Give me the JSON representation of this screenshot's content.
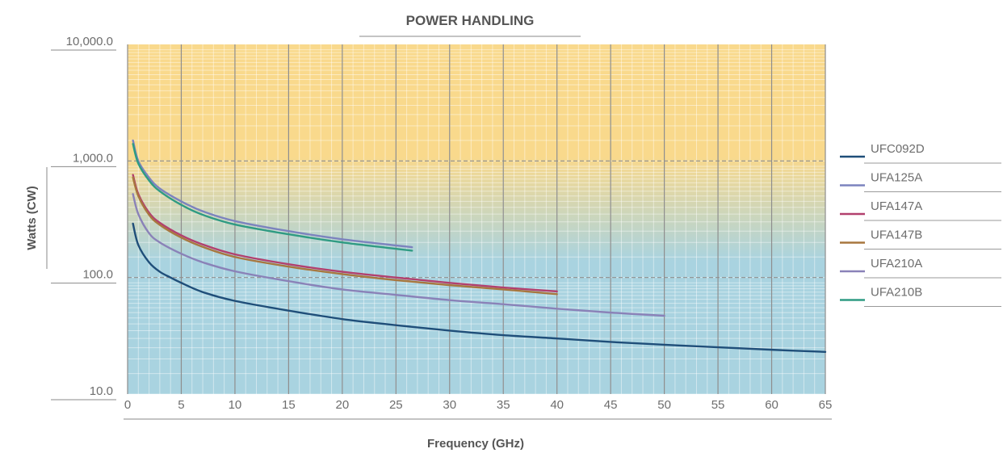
{
  "chart_data": {
    "type": "line",
    "title": "POWER HANDLING",
    "xlabel": "Frequency (GHz)",
    "ylabel": "Watts (CW)",
    "xscale": "linear",
    "yscale": "log",
    "xlim": [
      0,
      65
    ],
    "ylim": [
      10,
      10000
    ],
    "x_ticks": [
      0,
      5,
      10,
      15,
      20,
      25,
      30,
      35,
      40,
      45,
      50,
      55,
      60,
      65
    ],
    "x_tick_labels": [
      "0",
      "5",
      "10",
      "15",
      "20",
      "25",
      "30",
      "35",
      "40",
      "45",
      "50",
      "55",
      "60",
      "65"
    ],
    "y_ticks": [
      10,
      100,
      1000,
      10000
    ],
    "y_tick_labels": [
      "10.0",
      "100.0",
      "1,000.0",
      "10,000.0"
    ],
    "grid": true,
    "legend_position": "right",
    "background": {
      "top_color": "#f9d98c",
      "bottom_color": "#a9d3e0"
    },
    "series": [
      {
        "name": "UFC092D",
        "color": "#1f4e79",
        "x": [
          0.5,
          1,
          2,
          3,
          4,
          5,
          7,
          10,
          15,
          20,
          25,
          30,
          35,
          40,
          45,
          50,
          55,
          60,
          65
        ],
        "y": [
          290,
          190,
          135,
          112,
          100,
          90,
          75,
          63,
          52,
          44,
          39,
          35,
          32,
          30,
          28,
          26.5,
          25.2,
          24,
          23
        ]
      },
      {
        "name": "UFA125A",
        "color": "#7c83be",
        "x": [
          0.5,
          1,
          2,
          3,
          5,
          7,
          10,
          15,
          20,
          26.5
        ],
        "y": [
          1500,
          1000,
          720,
          580,
          450,
          370,
          305,
          250,
          213,
          182
        ]
      },
      {
        "name": "UFA147A",
        "color": "#b2406e",
        "x": [
          0.5,
          1,
          2,
          3,
          5,
          7,
          10,
          15,
          20,
          25,
          30,
          35,
          40
        ],
        "y": [
          760,
          520,
          360,
          295,
          230,
          192,
          158,
          130,
          112,
          100,
          90,
          82,
          76
        ]
      },
      {
        "name": "UFA147B",
        "color": "#a8773f",
        "x": [
          0.5,
          1,
          2,
          3,
          5,
          7,
          10,
          15,
          20,
          25,
          30,
          35,
          40
        ],
        "y": [
          720,
          500,
          345,
          283,
          220,
          183,
          150,
          124,
          107,
          95,
          86,
          79,
          72
        ]
      },
      {
        "name": "UFA210A",
        "color": "#8a82b8",
        "x": [
          0.5,
          1,
          2,
          3,
          5,
          7,
          10,
          15,
          20,
          25,
          30,
          35,
          40,
          45,
          50
        ],
        "y": [
          520,
          350,
          240,
          200,
          160,
          135,
          113,
          93,
          79,
          71,
          64,
          59,
          54,
          50,
          47
        ]
      },
      {
        "name": "UFA210B",
        "color": "#2f9b83",
        "x": [
          0.5,
          1,
          2,
          3,
          5,
          7,
          10,
          15,
          20,
          26.5
        ],
        "y": [
          1400,
          950,
          680,
          550,
          420,
          345,
          285,
          235,
          200,
          170
        ]
      }
    ]
  }
}
